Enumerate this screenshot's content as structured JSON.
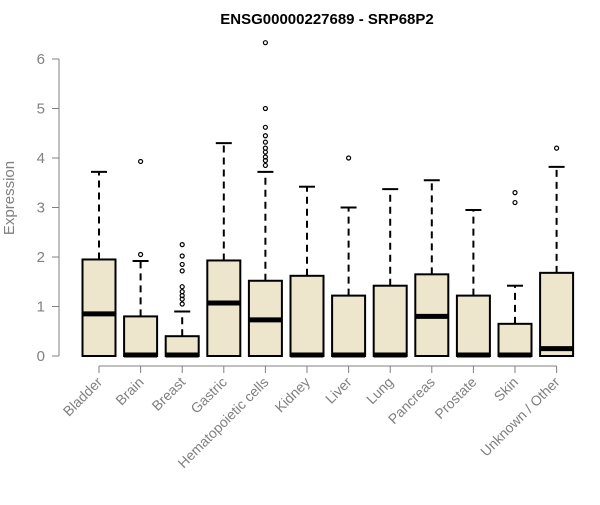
{
  "chart_data": {
    "type": "box",
    "title": "ENSG00000227689 - SRP68P2",
    "xlabel": "",
    "ylabel": "Expression",
    "ylim": [
      0,
      6.3
    ],
    "yticks": [
      0,
      1,
      2,
      3,
      4,
      5,
      6
    ],
    "grid": false,
    "legend": "none",
    "colors": {
      "box_fill": "#ede6cc",
      "box_stroke": "#000000",
      "median": "#000000",
      "axis_text": "#808080",
      "title": "#000000"
    },
    "categories": [
      "Bladder",
      "Brain",
      "Breast",
      "Gastric",
      "Hematopoietic cells",
      "Kidney",
      "Liver",
      "Lung",
      "Pancreas",
      "Prostate",
      "Skin",
      "Unknown / Other"
    ],
    "boxes": [
      {
        "category": "Bladder",
        "min": 0,
        "q1": 0,
        "median": 0.85,
        "q3": 1.95,
        "max": 3.72,
        "outliers": []
      },
      {
        "category": "Brain",
        "min": 0,
        "q1": 0,
        "median": 0.02,
        "q3": 0.8,
        "max": 1.92,
        "outliers": [
          2.05,
          3.93
        ]
      },
      {
        "category": "Breast",
        "min": 0,
        "q1": 0,
        "median": 0.02,
        "q3": 0.4,
        "max": 0.9,
        "outliers": [
          1.05,
          1.15,
          1.22,
          1.3,
          1.4,
          1.72,
          1.85,
          2.02,
          2.25
        ]
      },
      {
        "category": "Gastric",
        "min": 0,
        "q1": 0,
        "median": 1.07,
        "q3": 1.93,
        "max": 4.3,
        "outliers": []
      },
      {
        "category": "Hematopoietic cells",
        "min": 0,
        "q1": 0,
        "median": 0.73,
        "q3": 1.52,
        "max": 3.72,
        "outliers": [
          3.85,
          3.95,
          4.02,
          4.12,
          4.2,
          4.32,
          4.45,
          4.62,
          5.0,
          6.33
        ]
      },
      {
        "category": "Kidney",
        "min": 0,
        "q1": 0,
        "median": 0.02,
        "q3": 1.62,
        "max": 3.42,
        "outliers": []
      },
      {
        "category": "Liver",
        "min": 0,
        "q1": 0,
        "median": 0.02,
        "q3": 1.22,
        "max": 3.0,
        "outliers": [
          4.0
        ]
      },
      {
        "category": "Lung",
        "min": 0,
        "q1": 0,
        "median": 0.02,
        "q3": 1.42,
        "max": 3.37,
        "outliers": []
      },
      {
        "category": "Pancreas",
        "min": 0,
        "q1": 0,
        "median": 0.8,
        "q3": 1.65,
        "max": 3.55,
        "outliers": []
      },
      {
        "category": "Prostate",
        "min": 0,
        "q1": 0,
        "median": 0.02,
        "q3": 1.22,
        "max": 2.95,
        "outliers": []
      },
      {
        "category": "Skin",
        "min": 0,
        "q1": 0,
        "median": 0.02,
        "q3": 0.65,
        "max": 1.42,
        "outliers": [
          3.1,
          3.3
        ]
      },
      {
        "category": "Unknown / Other",
        "min": 0,
        "q1": 0,
        "median": 0.15,
        "q3": 1.68,
        "max": 3.82,
        "outliers": [
          4.2
        ]
      }
    ]
  }
}
